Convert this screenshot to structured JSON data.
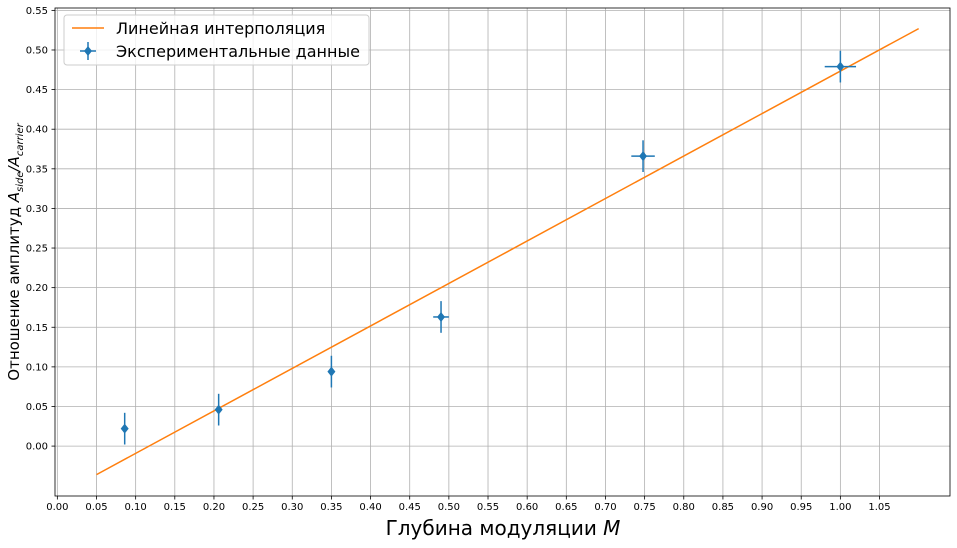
{
  "chart_data": {
    "type": "scatter",
    "xlabel": "Глубина модуляции",
    "xlabel_var": "M",
    "ylabel": "Отношение амплитуд",
    "ylabel_var": "A_side/A_carrier",
    "xlim": [
      -0.003,
      1.14
    ],
    "ylim": [
      -0.063,
      0.553
    ],
    "x_ticks": [
      "0.00",
      "0.05",
      "0.10",
      "0.15",
      "0.20",
      "0.25",
      "0.30",
      "0.35",
      "0.40",
      "0.45",
      "0.50",
      "0.55",
      "0.60",
      "0.65",
      "0.70",
      "0.75",
      "0.80",
      "0.85",
      "0.90",
      "0.95",
      "1.00",
      "1.05"
    ],
    "y_ticks": [
      "0.00",
      "0.05",
      "0.10",
      "0.15",
      "0.20",
      "0.25",
      "0.30",
      "0.35",
      "0.40",
      "0.45",
      "0.50",
      "0.55"
    ],
    "grid": true,
    "legend_position": "top-left",
    "series": [
      {
        "name": "Линейная интерполяция",
        "kind": "line",
        "color": "#ff7f0e",
        "x": [
          0.05,
          1.1
        ],
        "y": [
          -0.036,
          0.527
        ]
      },
      {
        "name": "Экспериментальные данные",
        "kind": "errorbar",
        "color": "#1f77b4",
        "x": [
          0.086,
          0.206,
          0.35,
          0.49,
          0.748,
          1.0
        ],
        "y": [
          0.022,
          0.046,
          0.094,
          0.163,
          0.366,
          0.479
        ],
        "xerr": [
          0.0,
          0.0,
          0.0,
          0.01,
          0.015,
          0.02
        ],
        "yerr": [
          0.02,
          0.02,
          0.02,
          0.02,
          0.02,
          0.02
        ]
      }
    ]
  }
}
